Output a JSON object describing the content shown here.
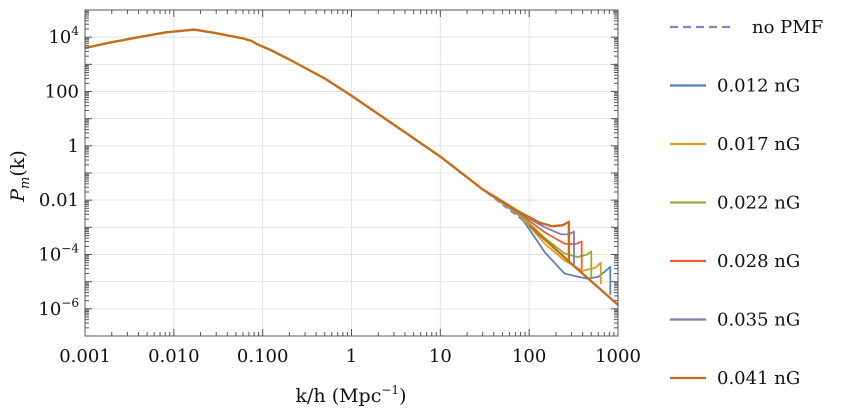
{
  "chart_data": {
    "type": "line",
    "xscale": "log",
    "yscale": "log",
    "xlim": [
      0.001,
      1000
    ],
    "ylim": [
      1e-07,
      100000
    ],
    "grid": true,
    "legend_position": "right",
    "xlabel": {
      "main": "k/h (Mpc",
      "sup": "−1",
      "tail": ")"
    },
    "ylabel": {
      "main": "P",
      "sub": "m",
      "tail": "(k)"
    },
    "x_ticks": [
      {
        "value": 0.001,
        "label": "0.001"
      },
      {
        "value": 0.01,
        "label": "0.010"
      },
      {
        "value": 0.1,
        "label": "0.100"
      },
      {
        "value": 1,
        "label": "1"
      },
      {
        "value": 10,
        "label": "10"
      },
      {
        "value": 100,
        "label": "100"
      },
      {
        "value": 1000,
        "label": "1000"
      }
    ],
    "y_ticks": [
      {
        "value": 10000,
        "base": "10",
        "exp": "4"
      },
      {
        "value": 100,
        "base": "100",
        "exp": ""
      },
      {
        "value": 1,
        "base": "1",
        "exp": ""
      },
      {
        "value": 0.01,
        "base": "0.01",
        "exp": ""
      },
      {
        "value": 0.0001,
        "base": "10",
        "exp": "−4"
      },
      {
        "value": 1e-06,
        "base": "10",
        "exp": "−6"
      }
    ],
    "base_curve": [
      [
        0.001,
        4000
      ],
      [
        0.002,
        6500
      ],
      [
        0.004,
        10000
      ],
      [
        0.008,
        15000
      ],
      [
        0.017,
        19000
      ],
      [
        0.03,
        14000
      ],
      [
        0.06,
        9000
      ],
      [
        0.075,
        7200
      ],
      [
        0.09,
        5200
      ],
      [
        0.12,
        3500
      ],
      [
        0.2,
        1500
      ],
      [
        0.5,
        300
      ],
      [
        1,
        70
      ],
      [
        3,
        6
      ],
      [
        10,
        0.4
      ],
      [
        30,
        0.025
      ],
      [
        100,
        0.0012
      ],
      [
        300,
        4.5e-05
      ],
      [
        1000,
        1.4e-06
      ]
    ],
    "series": [
      {
        "name": "no PMF",
        "color": "#8a82c4",
        "dashed": true,
        "tail": []
      },
      {
        "name": "0.012 nG",
        "color": "#5e81b5",
        "dashed": false,
        "tail": [
          [
            80,
            0.0025
          ],
          [
            150,
            0.00012
          ],
          [
            250,
            2e-05
          ],
          [
            330,
            1.6e-05
          ],
          [
            450,
            1.3e-05
          ],
          [
            600,
            1.5e-05
          ],
          [
            820,
            3.5e-05
          ],
          [
            820,
            3.3e-06
          ]
        ]
      },
      {
        "name": "0.017 nG",
        "color": "#e19c24",
        "dashed": false,
        "tail": [
          [
            80,
            0.0026
          ],
          [
            150,
            0.00025
          ],
          [
            250,
            6e-05
          ],
          [
            400,
            2.5e-05
          ],
          [
            550,
            3.2e-05
          ],
          [
            640,
            5e-05
          ],
          [
            640,
            8e-06
          ]
        ]
      },
      {
        "name": "0.022 nG",
        "color": "#8fb032",
        "dashed": false,
        "tail": [
          [
            80,
            0.0028
          ],
          [
            150,
            0.0004
          ],
          [
            250,
            0.00011
          ],
          [
            350,
            8e-05
          ],
          [
            450,
            0.0001
          ],
          [
            500,
            0.00013
          ],
          [
            500,
            1.45e-05
          ]
        ]
      },
      {
        "name": "0.028 nG",
        "color": "#eb6235",
        "dashed": false,
        "tail": [
          [
            80,
            0.003
          ],
          [
            150,
            0.00065
          ],
          [
            250,
            0.00025
          ],
          [
            330,
            0.00024
          ],
          [
            390,
            0.0003
          ],
          [
            390,
            2.8e-05
          ]
        ]
      },
      {
        "name": "0.035 nG",
        "color": "#8778b3",
        "dashed": false,
        "tail": [
          [
            80,
            0.0032
          ],
          [
            150,
            0.001
          ],
          [
            230,
            0.00055
          ],
          [
            280,
            0.00055
          ],
          [
            320,
            0.0007
          ],
          [
            320,
            4e-05
          ]
        ]
      },
      {
        "name": "0.041 nG",
        "color": "#c56e1a",
        "dashed": false,
        "tail": [
          [
            80,
            0.0035
          ],
          [
            130,
            0.0015
          ],
          [
            180,
            0.0011
          ],
          [
            240,
            0.0012
          ],
          [
            280,
            0.0016
          ],
          [
            280,
            5e-05
          ]
        ]
      }
    ]
  }
}
